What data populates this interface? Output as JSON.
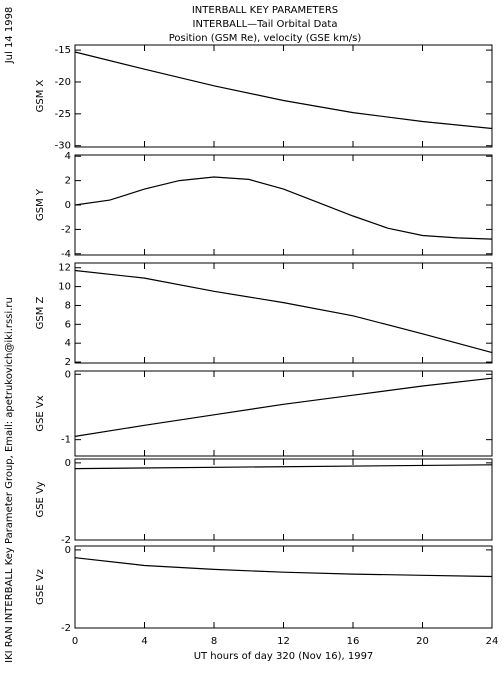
{
  "header": {
    "title_lines": [
      "INTERBALL KEY PARAMETERS",
      "INTERBALL—Tail Orbital Data",
      "Position (GSM Re), velocity (GSE km/s)"
    ],
    "date": "Jul 14 1998",
    "credit": "IKI RAN INTERBALL Key Parameter Group, Email: apetrukovich@iki.rssi.ru"
  },
  "chart_data": [
    {
      "type": "line",
      "ylabel": "GSM X",
      "ylim": [
        -30.2,
        -14.2
      ],
      "yticks": [
        -15,
        -20,
        -25,
        -30
      ],
      "xlim": [
        0,
        24
      ],
      "xticks": [
        0,
        4,
        8,
        12,
        16,
        20,
        24
      ],
      "x": [
        0,
        4,
        8,
        12,
        16,
        20,
        24
      ],
      "values": [
        -15.3,
        -18.0,
        -20.6,
        -22.9,
        -24.8,
        -26.2,
        -27.3
      ],
      "color": "#000000"
    },
    {
      "type": "line",
      "ylabel": "GSM Y",
      "ylim": [
        -4.1,
        4.1
      ],
      "yticks": [
        4,
        2,
        0,
        -2,
        -4
      ],
      "xlim": [
        0,
        24
      ],
      "xticks": [
        0,
        4,
        8,
        12,
        16,
        20,
        24
      ],
      "x": [
        0,
        2,
        4,
        6,
        8,
        10,
        12,
        14,
        16,
        18,
        20,
        22,
        24
      ],
      "values": [
        0,
        0.4,
        1.3,
        2.0,
        2.3,
        2.1,
        1.3,
        0.2,
        -0.9,
        -1.9,
        -2.5,
        -2.7,
        -2.8
      ],
      "color": "#000000"
    },
    {
      "type": "line",
      "ylabel": "GSM Z",
      "ylim": [
        1.9,
        12.5
      ],
      "yticks": [
        12,
        10,
        8,
        6,
        4,
        2
      ],
      "xlim": [
        0,
        24
      ],
      "xticks": [
        0,
        4,
        8,
        12,
        16,
        20,
        24
      ],
      "x": [
        0,
        4,
        8,
        12,
        16,
        20,
        24
      ],
      "values": [
        11.7,
        10.9,
        9.5,
        8.3,
        6.9,
        5.0,
        3.0
      ],
      "color": "#000000"
    },
    {
      "type": "line",
      "ylabel": "GSE Vx",
      "ylim": [
        -1.25,
        0.05
      ],
      "yticks": [
        0,
        -1
      ],
      "xlim": [
        0,
        24
      ],
      "xticks": [
        0,
        4,
        8,
        12,
        16,
        20,
        24
      ],
      "x": [
        0,
        4,
        8,
        12,
        16,
        20,
        24
      ],
      "values": [
        -0.95,
        -0.78,
        -0.62,
        -0.46,
        -0.32,
        -0.18,
        -0.06
      ],
      "color": "#000000"
    },
    {
      "type": "line",
      "ylabel": "GSE Vy",
      "ylim": [
        -2.0,
        0.1
      ],
      "yticks": [
        0,
        -2
      ],
      "xlim": [
        0,
        24
      ],
      "xticks": [
        0,
        4,
        8,
        12,
        16,
        20,
        24
      ],
      "x": [
        0,
        24
      ],
      "values": [
        -0.15,
        -0.05
      ],
      "color": "#000000"
    },
    {
      "type": "line",
      "ylabel": "GSE Vz",
      "ylim": [
        -2.0,
        0.1
      ],
      "yticks": [
        0,
        -2
      ],
      "xlim": [
        0,
        24
      ],
      "xticks": [
        0,
        4,
        8,
        12,
        16,
        20,
        24
      ],
      "x": [
        0,
        4,
        8,
        12,
        16,
        20,
        24
      ],
      "values": [
        -0.2,
        -0.4,
        -0.5,
        -0.57,
        -0.62,
        -0.65,
        -0.68
      ],
      "color": "#000000",
      "xlabel": "UT hours of day 320 (Nov 16), 1997"
    }
  ]
}
